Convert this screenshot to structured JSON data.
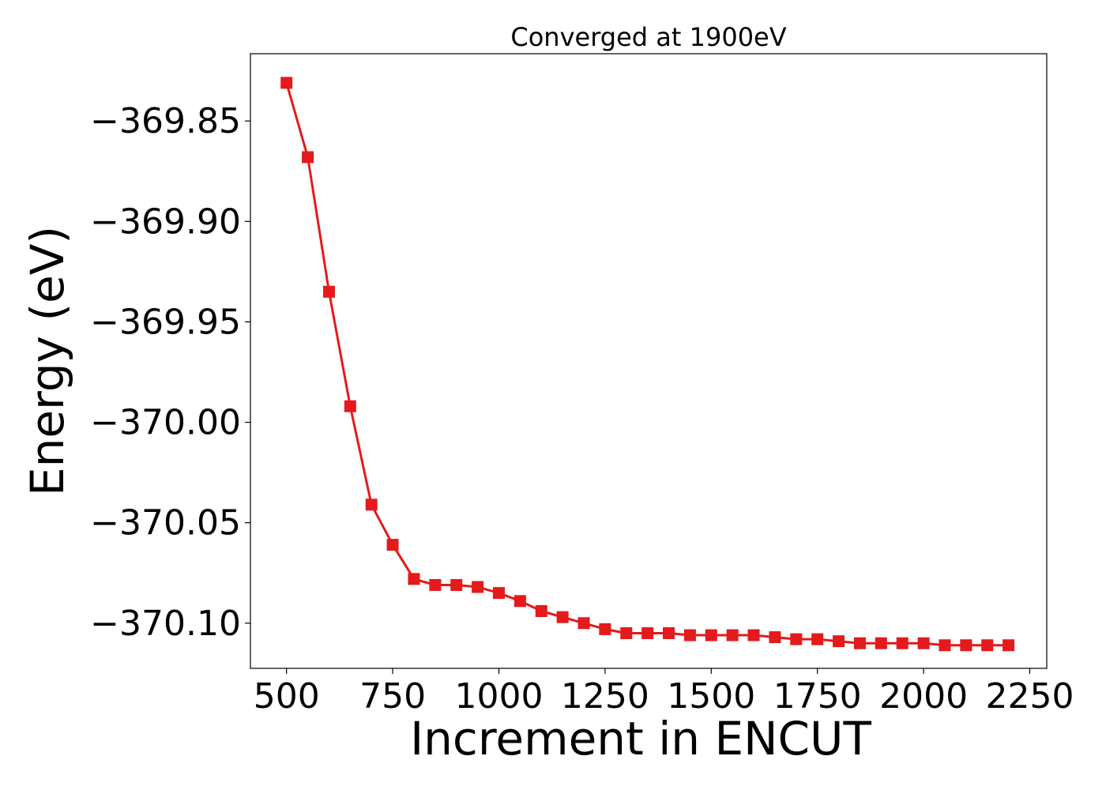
{
  "chart_data": {
    "type": "line",
    "title": "Converged at 1900eV",
    "xlabel": "Increment in ENCUT",
    "ylabel": "Energy (eV)",
    "xlim": [
      415,
      2290
    ],
    "ylim": [
      -370.1225,
      -369.8165
    ],
    "xticks": [
      500,
      750,
      1000,
      1250,
      1500,
      1750,
      2000,
      2250
    ],
    "xtick_labels": [
      "500",
      "750",
      "1000",
      "1250",
      "1500",
      "1750",
      "2000",
      "2250"
    ],
    "yticks": [
      -369.85,
      -369.9,
      -369.95,
      -370.0,
      -370.05,
      -370.1
    ],
    "ytick_labels": [
      "−369.85",
      "−369.90",
      "−369.95",
      "−370.00",
      "−370.05",
      "−370.10"
    ],
    "grid": false,
    "legend": "none",
    "series": [
      {
        "color": "#e41a1c",
        "marker": "square",
        "x": [
          500,
          550,
          600,
          650,
          700,
          750,
          800,
          850,
          900,
          950,
          1000,
          1050,
          1100,
          1150,
          1200,
          1250,
          1300,
          1350,
          1400,
          1450,
          1500,
          1550,
          1600,
          1650,
          1700,
          1750,
          1800,
          1850,
          1900,
          1950,
          2000,
          2050,
          2100,
          2150,
          2200
        ],
        "y": [
          -369.831,
          -369.868,
          -369.935,
          -369.992,
          -370.041,
          -370.061,
          -370.078,
          -370.081,
          -370.081,
          -370.082,
          -370.085,
          -370.089,
          -370.094,
          -370.097,
          -370.1,
          -370.103,
          -370.105,
          -370.105,
          -370.105,
          -370.106,
          -370.106,
          -370.106,
          -370.106,
          -370.107,
          -370.108,
          -370.108,
          -370.109,
          -370.11,
          -370.11,
          -370.11,
          -370.11,
          -370.111,
          -370.111,
          -370.111,
          -370.111
        ]
      }
    ]
  }
}
